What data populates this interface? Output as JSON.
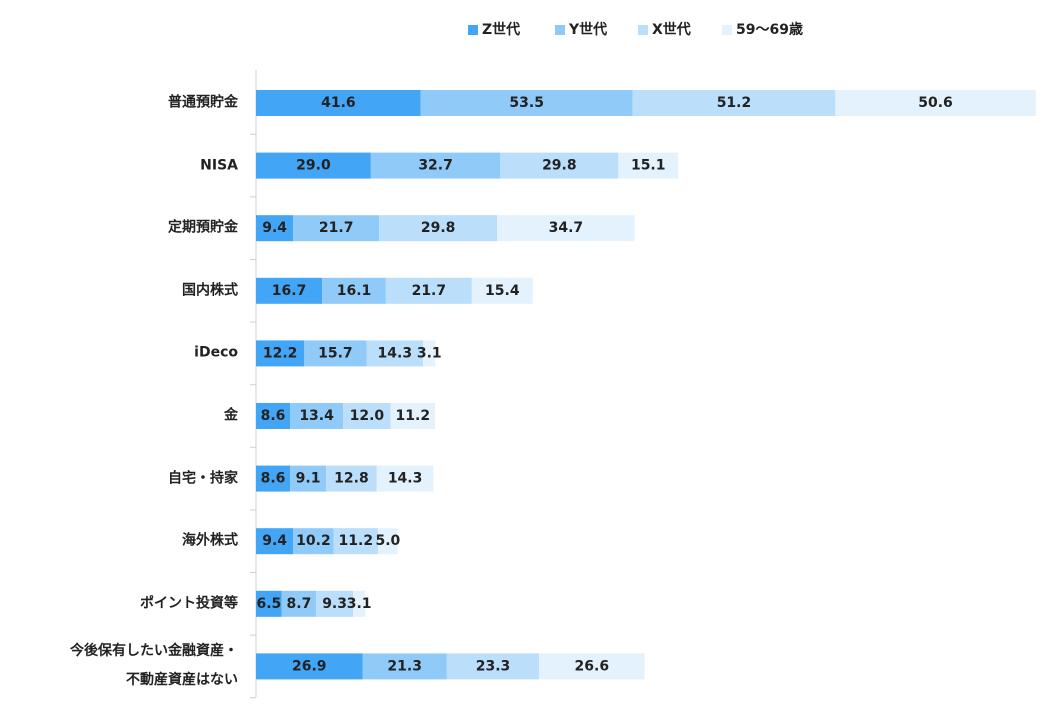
{
  "chart_data": {
    "type": "stacked-bar-horizontal",
    "categories": [
      "普通預貯金",
      "NISA",
      "定期預貯金",
      "国内株式",
      "iDeco",
      "金",
      "自宅・持家",
      "海外株式",
      "ポイント投資等",
      "今後保有したい金融資産・\n不動産資産はない"
    ],
    "series": [
      {
        "name": "Z世代",
        "color": "#42a5f5",
        "values": [
          41.6,
          29.0,
          9.4,
          16.7,
          12.2,
          8.6,
          8.6,
          9.4,
          6.5,
          26.9
        ],
        "value_labels": [
          "41.6",
          "29.0",
          "9.4",
          "16.7",
          "12.2",
          "8.6",
          "8.6",
          "9.4",
          "6.5",
          "26.9"
        ]
      },
      {
        "name": "Y世代",
        "color": "#90caf9",
        "values": [
          53.5,
          32.7,
          21.7,
          16.1,
          15.7,
          13.4,
          9.1,
          10.2,
          8.7,
          21.3
        ],
        "value_labels": [
          "53.5",
          "32.7",
          "21.7",
          "16.1",
          "15.7",
          "13.4",
          "9.1",
          "10.2",
          "8.7",
          "21.3"
        ]
      },
      {
        "name": "X世代",
        "color": "#bbdefb",
        "values": [
          51.2,
          29.8,
          29.8,
          21.7,
          14.3,
          12.0,
          12.8,
          11.2,
          9.3,
          23.3
        ],
        "value_labels": [
          "51.2",
          "29.8",
          "29.8",
          "21.7",
          "14.3",
          "12.0",
          "12.8",
          "11.2",
          "9.3",
          "23.3"
        ]
      },
      {
        "name": "59～69歳",
        "color": "#e3f2fd",
        "values": [
          50.6,
          15.1,
          34.7,
          15.4,
          3.1,
          11.2,
          14.3,
          5.0,
          3.1,
          26.6
        ],
        "value_labels": [
          "50.6",
          "15.1",
          "34.7",
          "15.4",
          "3.1",
          "11.2",
          "14.3",
          "5.0",
          "3.1",
          "26.6"
        ]
      }
    ]
  }
}
